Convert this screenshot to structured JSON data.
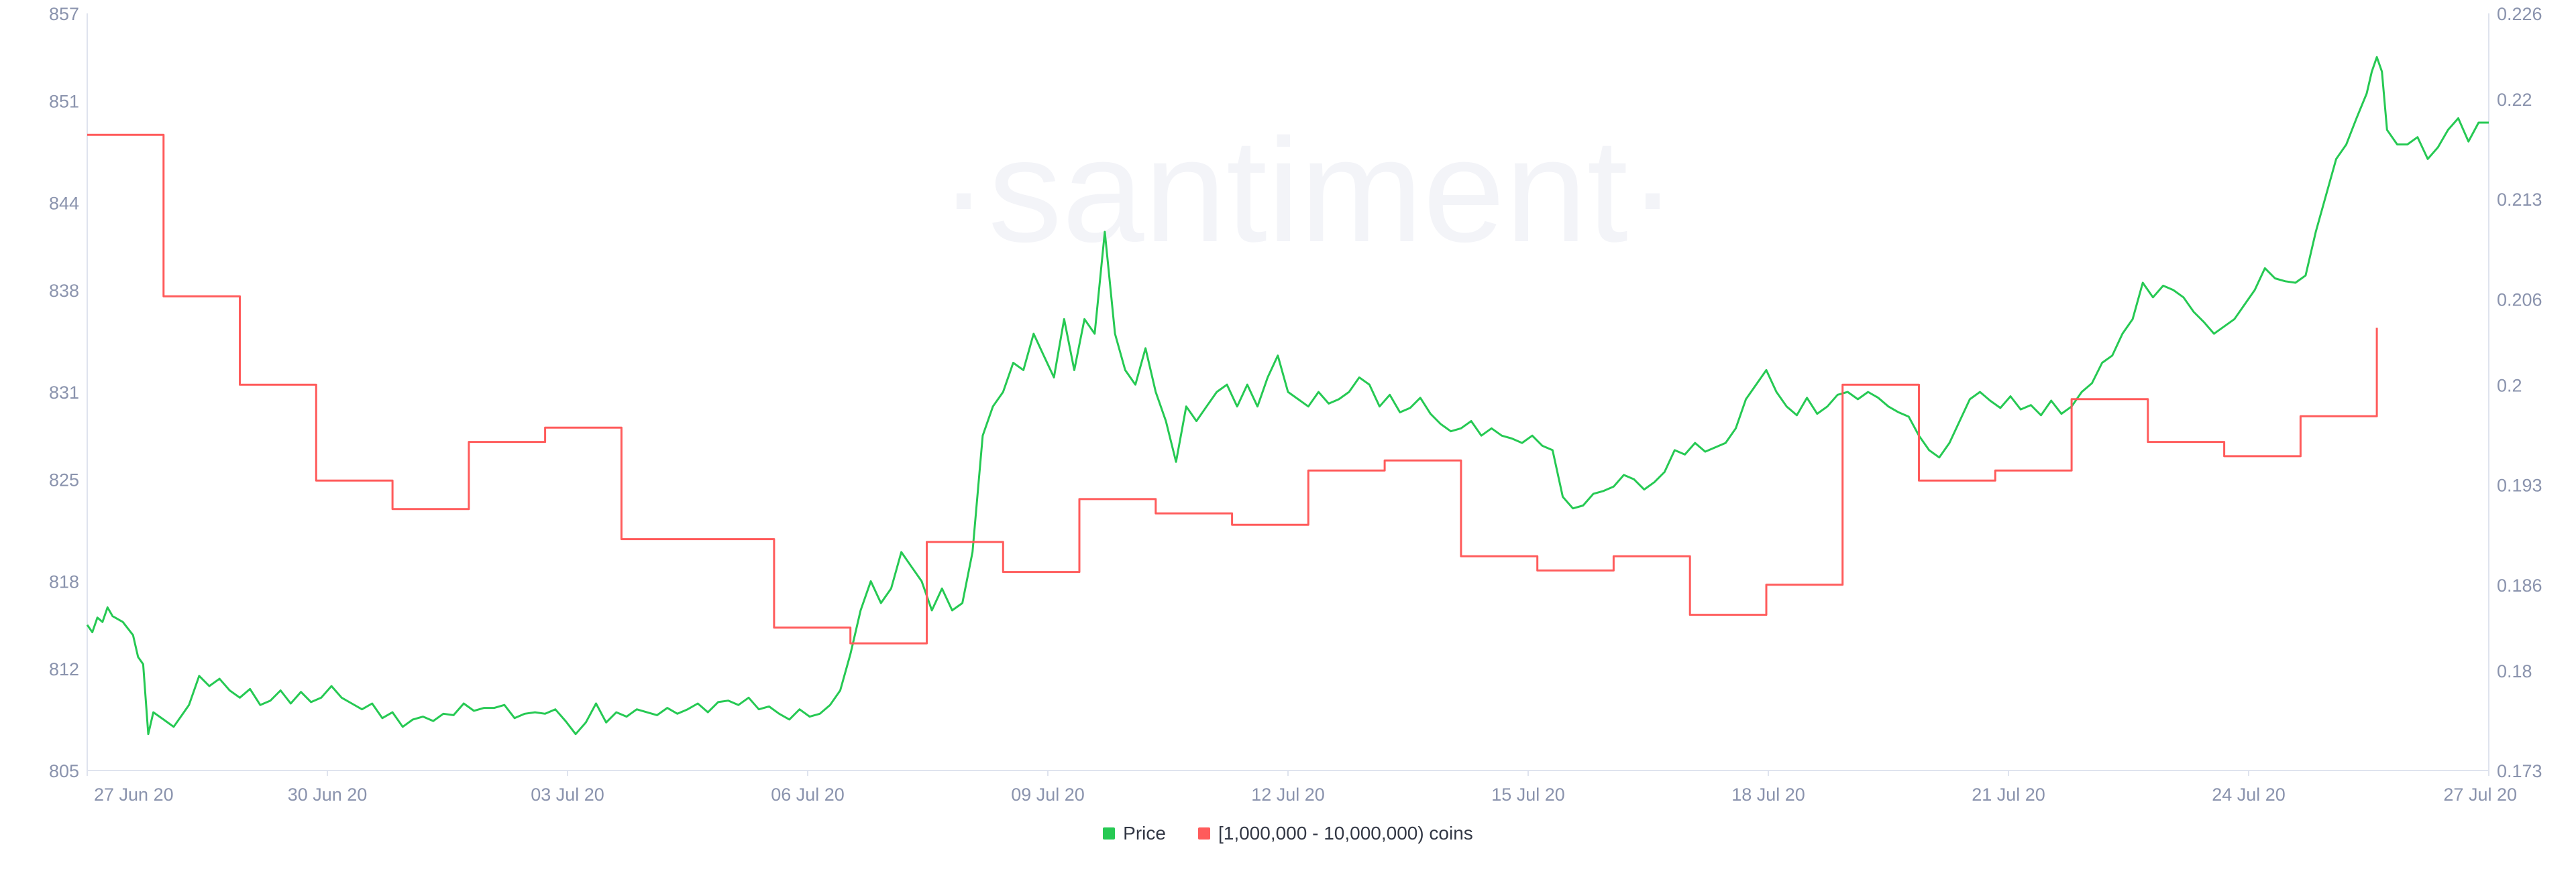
{
  "watermark": "·santiment·",
  "colors": {
    "price": "#26c953",
    "holders": "#ff5b5b",
    "axis": "#dfe3ee",
    "tick": "#8a93ad"
  },
  "legend": [
    {
      "name": "price-legend",
      "label": "Price",
      "color": "#26c953"
    },
    {
      "name": "holders-legend",
      "label": "[1,000,000 - 10,000,000) coins",
      "color": "#ff5b5b"
    }
  ],
  "chart_data": {
    "type": "line",
    "title": "",
    "xlabel": "",
    "x_ticks": [
      "27 Jun 20",
      "30 Jun 20",
      "03 Jul 20",
      "06 Jul 20",
      "09 Jul 20",
      "12 Jul 20",
      "15 Jul 20",
      "18 Jul 20",
      "21 Jul 20",
      "24 Jul 20",
      "27 Jul 20"
    ],
    "x_range_days": [
      0,
      30
    ],
    "y_left": {
      "min": 805,
      "max": 857,
      "ticks": [
        "805",
        "812",
        "818",
        "825",
        "831",
        "838",
        "844",
        "851",
        "857"
      ]
    },
    "y_right": {
      "min": 0.173,
      "max": 0.226,
      "ticks": [
        "0.173",
        "0.18",
        "0.186",
        "0.193",
        "0.2",
        "0.206",
        "0.213",
        "0.22",
        "0.226"
      ]
    },
    "grid": false,
    "legend_position": "bottom-center",
    "series": [
      {
        "name": "Price",
        "axis": "left",
        "color": "#26c953",
        "points": [
          [
            0,
            815
          ],
          [
            0.1,
            814.5
          ],
          [
            0.2,
            815.5
          ],
          [
            0.3,
            815.2
          ],
          [
            0.4,
            816.2
          ],
          [
            0.5,
            815.6
          ],
          [
            0.7,
            815.2
          ],
          [
            0.9,
            814.3
          ],
          [
            1.0,
            812.8
          ],
          [
            1.1,
            812.3
          ],
          [
            1.2,
            807.5
          ],
          [
            1.3,
            809
          ],
          [
            1.5,
            808.5
          ],
          [
            1.7,
            808
          ],
          [
            1.9,
            809
          ],
          [
            2.0,
            809.5
          ],
          [
            2.2,
            811.5
          ],
          [
            2.4,
            810.8
          ],
          [
            2.6,
            811.3
          ],
          [
            2.8,
            810.5
          ],
          [
            3.0,
            810
          ],
          [
            3.2,
            810.6
          ],
          [
            3.4,
            809.5
          ],
          [
            3.6,
            809.8
          ],
          [
            3.8,
            810.5
          ],
          [
            4.0,
            809.6
          ],
          [
            4.2,
            810.4
          ],
          [
            4.4,
            809.7
          ],
          [
            4.6,
            810
          ],
          [
            4.8,
            810.8
          ],
          [
            5.0,
            810
          ],
          [
            5.2,
            809.6
          ],
          [
            5.4,
            809.2
          ],
          [
            5.6,
            809.6
          ],
          [
            5.8,
            808.6
          ],
          [
            6.0,
            809
          ],
          [
            6.2,
            808
          ],
          [
            6.4,
            808.5
          ],
          [
            6.6,
            808.7
          ],
          [
            6.8,
            808.4
          ],
          [
            7.0,
            808.9
          ],
          [
            7.2,
            808.8
          ],
          [
            7.4,
            809.6
          ],
          [
            7.6,
            809.1
          ],
          [
            7.8,
            809.3
          ],
          [
            8.0,
            809.3
          ],
          [
            8.2,
            809.5
          ],
          [
            8.4,
            808.6
          ],
          [
            8.6,
            808.9
          ],
          [
            8.8,
            809
          ],
          [
            9.0,
            808.9
          ],
          [
            9.2,
            809.2
          ],
          [
            9.4,
            808.4
          ],
          [
            9.6,
            807.5
          ],
          [
            9.8,
            808.3
          ],
          [
            10.0,
            809.6
          ],
          [
            10.2,
            808.3
          ],
          [
            10.4,
            809
          ],
          [
            10.6,
            808.7
          ],
          [
            10.8,
            809.2
          ],
          [
            11.0,
            809
          ],
          [
            11.2,
            808.8
          ],
          [
            11.4,
            809.3
          ],
          [
            11.6,
            808.9
          ],
          [
            11.8,
            809.2
          ],
          [
            12.0,
            809.6
          ],
          [
            12.2,
            809
          ],
          [
            12.4,
            809.7
          ],
          [
            12.6,
            809.8
          ],
          [
            12.8,
            809.5
          ],
          [
            13.0,
            810
          ],
          [
            13.2,
            809.2
          ],
          [
            13.4,
            809.4
          ],
          [
            13.6,
            808.9
          ],
          [
            13.8,
            808.5
          ],
          [
            14.0,
            809.2
          ],
          [
            14.2,
            808.7
          ],
          [
            14.4,
            808.9
          ],
          [
            14.6,
            809.5
          ],
          [
            14.8,
            810.5
          ],
          [
            15.0,
            813
          ],
          [
            15.2,
            816
          ],
          [
            15.4,
            818
          ],
          [
            15.6,
            816.5
          ],
          [
            15.8,
            817.5
          ],
          [
            16.0,
            820
          ],
          [
            16.2,
            819
          ],
          [
            16.4,
            818
          ],
          [
            16.6,
            816
          ],
          [
            16.8,
            817.5
          ],
          [
            17.0,
            816
          ],
          [
            17.2,
            816.5
          ],
          [
            17.4,
            820
          ],
          [
            17.6,
            828
          ],
          [
            17.8,
            830
          ],
          [
            18.0,
            831
          ],
          [
            18.2,
            833
          ],
          [
            18.4,
            832.5
          ],
          [
            18.6,
            835
          ],
          [
            18.8,
            833.5
          ],
          [
            19.0,
            832
          ],
          [
            19.2,
            836
          ],
          [
            19.4,
            832.5
          ],
          [
            19.6,
            836
          ],
          [
            19.8,
            835
          ],
          [
            20.0,
            842
          ],
          [
            20.2,
            835
          ],
          [
            20.4,
            832.5
          ],
          [
            20.6,
            831.5
          ],
          [
            20.8,
            834
          ],
          [
            21.0,
            831
          ],
          [
            21.2,
            829
          ],
          [
            21.4,
            826.2
          ],
          [
            21.6,
            830
          ],
          [
            21.8,
            829
          ],
          [
            22.0,
            830
          ],
          [
            22.2,
            831
          ],
          [
            22.4,
            831.5
          ],
          [
            22.6,
            830
          ],
          [
            22.8,
            831.5
          ],
          [
            23.0,
            830
          ],
          [
            23.2,
            832
          ],
          [
            23.4,
            833.5
          ],
          [
            23.6,
            831
          ],
          [
            23.8,
            830.5
          ],
          [
            24.0,
            830
          ],
          [
            24.2,
            831
          ],
          [
            24.4,
            830.2
          ],
          [
            24.6,
            830.5
          ],
          [
            24.8,
            831
          ],
          [
            25.0,
            832
          ],
          [
            25.2,
            831.5
          ],
          [
            25.4,
            830
          ],
          [
            25.6,
            830.8
          ],
          [
            25.8,
            829.6
          ],
          [
            26.0,
            829.9
          ],
          [
            26.2,
            830.6
          ],
          [
            26.4,
            829.5
          ],
          [
            26.6,
            828.8
          ],
          [
            26.8,
            828.3
          ],
          [
            27.0,
            828.5
          ],
          [
            27.2,
            829
          ],
          [
            27.4,
            828
          ],
          [
            27.6,
            828.5
          ],
          [
            27.8,
            828
          ],
          [
            28.0,
            827.8
          ],
          [
            28.2,
            827.5
          ],
          [
            28.4,
            828
          ],
          [
            28.6,
            827.3
          ],
          [
            28.8,
            827
          ],
          [
            29.0,
            823.8
          ],
          [
            29.2,
            823
          ],
          [
            29.4,
            823.2
          ],
          [
            29.6,
            824
          ],
          [
            29.8,
            824.2
          ],
          [
            30.0,
            824.5
          ],
          [
            30.2,
            825.3
          ],
          [
            30.4,
            825
          ],
          [
            30.6,
            824.3
          ],
          [
            30.8,
            824.8
          ],
          [
            31.0,
            825.5
          ],
          [
            31.2,
            827
          ],
          [
            31.4,
            826.7
          ],
          [
            31.6,
            827.5
          ],
          [
            31.8,
            826.9
          ],
          [
            32.0,
            827.2
          ],
          [
            32.2,
            827.5
          ],
          [
            32.4,
            828.5
          ],
          [
            32.6,
            830.5
          ],
          [
            32.8,
            831.5
          ],
          [
            33.0,
            832.5
          ],
          [
            33.2,
            831
          ],
          [
            33.4,
            830
          ],
          [
            33.6,
            829.4
          ],
          [
            33.8,
            830.6
          ],
          [
            34.0,
            829.5
          ],
          [
            34.2,
            830
          ],
          [
            34.4,
            830.8
          ],
          [
            34.6,
            831
          ],
          [
            34.8,
            830.5
          ],
          [
            35.0,
            831
          ],
          [
            35.2,
            830.6
          ],
          [
            35.4,
            830
          ],
          [
            35.6,
            829.6
          ],
          [
            35.8,
            829.3
          ],
          [
            36.0,
            828
          ],
          [
            36.2,
            827
          ],
          [
            36.4,
            826.5
          ],
          [
            36.6,
            827.5
          ],
          [
            36.8,
            829
          ],
          [
            37.0,
            830.5
          ],
          [
            37.2,
            831
          ],
          [
            37.4,
            830.4
          ],
          [
            37.6,
            829.9
          ],
          [
            37.8,
            830.7
          ],
          [
            38.0,
            829.8
          ],
          [
            38.2,
            830.1
          ],
          [
            38.4,
            829.4
          ],
          [
            38.6,
            830.4
          ],
          [
            38.8,
            829.5
          ],
          [
            39.0,
            830
          ],
          [
            39.2,
            831
          ],
          [
            39.4,
            831.6
          ],
          [
            39.6,
            833
          ],
          [
            39.8,
            833.5
          ],
          [
            40.0,
            835
          ],
          [
            40.2,
            836
          ],
          [
            40.4,
            838.5
          ],
          [
            40.6,
            837.5
          ],
          [
            40.8,
            838.3
          ],
          [
            41.0,
            838
          ],
          [
            41.2,
            837.5
          ],
          [
            41.4,
            836.5
          ],
          [
            41.6,
            835.8
          ],
          [
            41.8,
            835
          ],
          [
            42.0,
            835.5
          ],
          [
            42.2,
            836
          ],
          [
            42.4,
            837
          ],
          [
            42.6,
            838
          ],
          [
            42.8,
            839.5
          ],
          [
            43.0,
            838.8
          ],
          [
            43.2,
            838.6
          ],
          [
            43.4,
            838.5
          ],
          [
            43.6,
            839
          ],
          [
            43.8,
            842
          ],
          [
            44.0,
            844.5
          ],
          [
            44.2,
            847
          ],
          [
            44.4,
            848
          ],
          [
            44.6,
            849.8
          ],
          [
            44.8,
            851.5
          ],
          [
            44.9,
            853
          ],
          [
            45.0,
            854
          ],
          [
            45.1,
            853
          ],
          [
            45.2,
            849
          ],
          [
            45.4,
            848
          ],
          [
            45.6,
            848
          ],
          [
            45.8,
            848.5
          ],
          [
            46.0,
            847
          ],
          [
            46.2,
            847.8
          ],
          [
            46.4,
            849
          ],
          [
            46.6,
            849.8
          ],
          [
            46.8,
            848.2
          ],
          [
            47.0,
            849.5
          ],
          [
            47.2,
            849.5
          ]
        ]
      },
      {
        "name": "[1,000,000 - 10,000,000) coins",
        "axis": "right",
        "color": "#ff5b5b",
        "points": [
          [
            0,
            0.2175
          ],
          [
            1.5,
            0.2175
          ],
          [
            1.5,
            0.2062
          ],
          [
            3.0,
            0.2062
          ],
          [
            3.0,
            0.2
          ],
          [
            4.5,
            0.2
          ],
          [
            4.5,
            0.1933
          ],
          [
            6.0,
            0.1933
          ],
          [
            6.0,
            0.1913
          ],
          [
            7.5,
            0.1913
          ],
          [
            7.5,
            0.196
          ],
          [
            9.0,
            0.196
          ],
          [
            9.0,
            0.197
          ],
          [
            10.5,
            0.197
          ],
          [
            10.5,
            0.1892
          ],
          [
            13.5,
            0.1892
          ],
          [
            13.5,
            0.183
          ],
          [
            15.0,
            0.183
          ],
          [
            15.0,
            0.1819
          ],
          [
            16.5,
            0.1819
          ],
          [
            16.5,
            0.189
          ],
          [
            18.0,
            0.189
          ],
          [
            18.0,
            0.1869
          ],
          [
            19.5,
            0.1869
          ],
          [
            19.5,
            0.192
          ],
          [
            21.0,
            0.192
          ],
          [
            21.0,
            0.191
          ],
          [
            22.5,
            0.191
          ],
          [
            22.5,
            0.1902
          ],
          [
            24.0,
            0.1902
          ],
          [
            24.0,
            0.194
          ],
          [
            25.5,
            0.194
          ],
          [
            25.5,
            0.1947
          ],
          [
            27.0,
            0.1947
          ],
          [
            27.0,
            0.188
          ],
          [
            28.5,
            0.188
          ],
          [
            28.5,
            0.187
          ],
          [
            30.0,
            0.187
          ],
          [
            30.0,
            0.188
          ],
          [
            31.5,
            0.188
          ],
          [
            31.5,
            0.1839
          ],
          [
            33.0,
            0.1839
          ],
          [
            33.0,
            0.186
          ],
          [
            34.5,
            0.186
          ],
          [
            34.5,
            0.2
          ],
          [
            36.0,
            0.2
          ],
          [
            36.0,
            0.1933
          ],
          [
            37.5,
            0.1933
          ],
          [
            37.5,
            0.194
          ],
          [
            39.0,
            0.194
          ],
          [
            39.0,
            0.199
          ],
          [
            40.5,
            0.199
          ],
          [
            40.5,
            0.196
          ],
          [
            42.0,
            0.196
          ],
          [
            42.0,
            0.195
          ],
          [
            43.5,
            0.195
          ],
          [
            43.5,
            0.1978
          ],
          [
            45.0,
            0.1978
          ],
          [
            45.0,
            0.204
          ]
        ]
      }
    ]
  }
}
